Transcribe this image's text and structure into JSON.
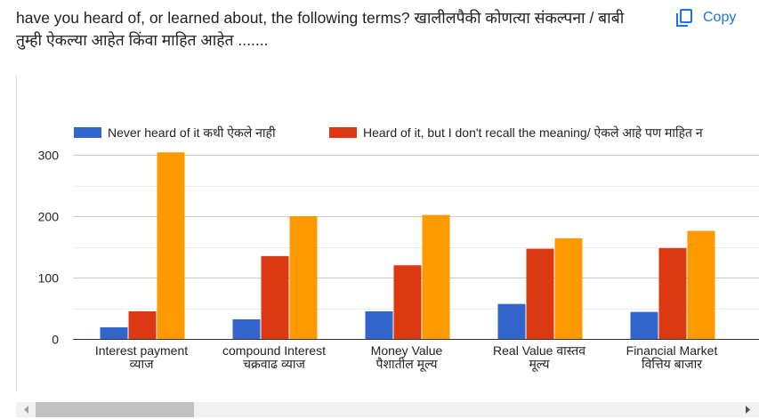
{
  "chart_data": {
    "type": "bar",
    "title": "have you heard of, or learned about, the following terms? खालीलपैकी कोणत्या संकल्पना / बाबी तुम्ही ऐकल्या आहेत किंवा माहित आहेत .......",
    "categories": [
      [
        "Interest payment",
        "व्याज"
      ],
      [
        "compound Interest",
        "चक्रवाढ व्याज"
      ],
      [
        "Money Value",
        "पैशातील मूल्य"
      ],
      [
        "Real Value वास्तव",
        "मूल्य"
      ],
      [
        "Financial Market",
        "वित्तिय बाजार"
      ]
    ],
    "series": [
      {
        "name": "Never heard of it कधी ऐकले नाही",
        "color": "#3366cc",
        "values": [
          19,
          32,
          45,
          57,
          44
        ]
      },
      {
        "name": "Heard of it, but I don't recall the meaning/ ऐकले आहे पण माहित न",
        "color": "#dc3912",
        "values": [
          45,
          135,
          120,
          147,
          148
        ]
      },
      {
        "color": "#ff9900",
        "values": [
          304,
          200,
          202,
          164,
          176
        ]
      }
    ],
    "ylim": [
      0,
      300
    ],
    "yticks": [
      0,
      100,
      200,
      300
    ],
    "minor_yticks": [
      50,
      150,
      250
    ],
    "grid": true,
    "legend": "top"
  },
  "copy_label": "Copy"
}
